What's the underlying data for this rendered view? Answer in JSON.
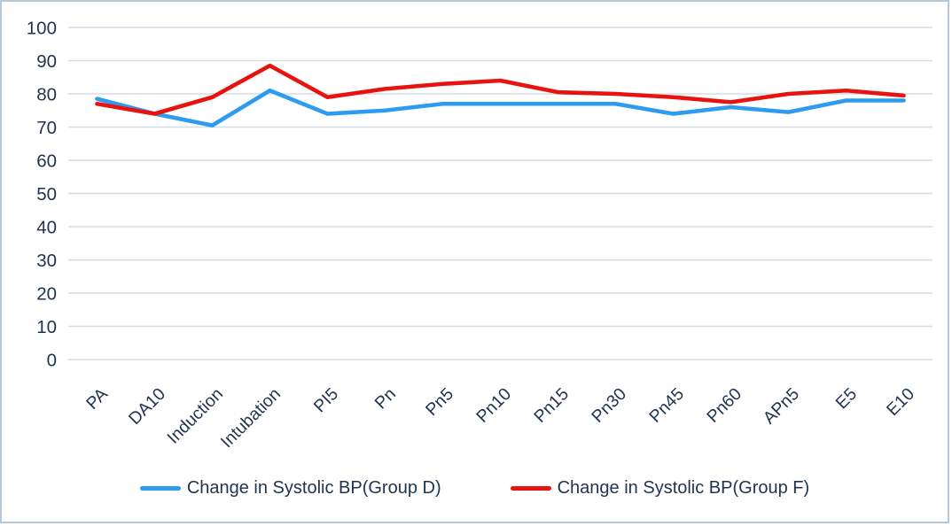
{
  "chart_data": {
    "type": "line",
    "categories": [
      "PA",
      "DA10",
      "Induction",
      "Intubation",
      "PI5",
      "Pn",
      "Pn5",
      "Pn10",
      "Pn15",
      "Pn30",
      "Pn45",
      "Pn60",
      "APn5",
      "E5",
      "E10"
    ],
    "series": [
      {
        "name": "Change in Systolic BP(Group D)",
        "color": "#2d9bf0",
        "values": [
          78.5,
          74,
          70.5,
          81,
          74,
          75,
          77,
          77,
          77,
          77,
          74,
          76,
          74.5,
          78,
          78
        ]
      },
      {
        "name": "Change in Systolic BP(Group F)",
        "color": "#e8120f",
        "values": [
          77,
          74,
          79,
          88.5,
          79,
          81.5,
          83,
          84,
          80.5,
          80,
          79,
          77.5,
          80,
          81,
          79.5
        ]
      }
    ],
    "title": "",
    "xlabel": "",
    "ylabel": "",
    "ylim": [
      0,
      100
    ],
    "yticks": [
      0,
      10,
      20,
      30,
      40,
      50,
      60,
      70,
      80,
      90,
      100
    ],
    "grid": "horizontal",
    "legend_position": "bottom",
    "colors": {
      "axis_text": "#1f3350",
      "gridline": "#d6dce6",
      "frame_border": "#b9c7d9",
      "background": "#ffffff"
    }
  }
}
